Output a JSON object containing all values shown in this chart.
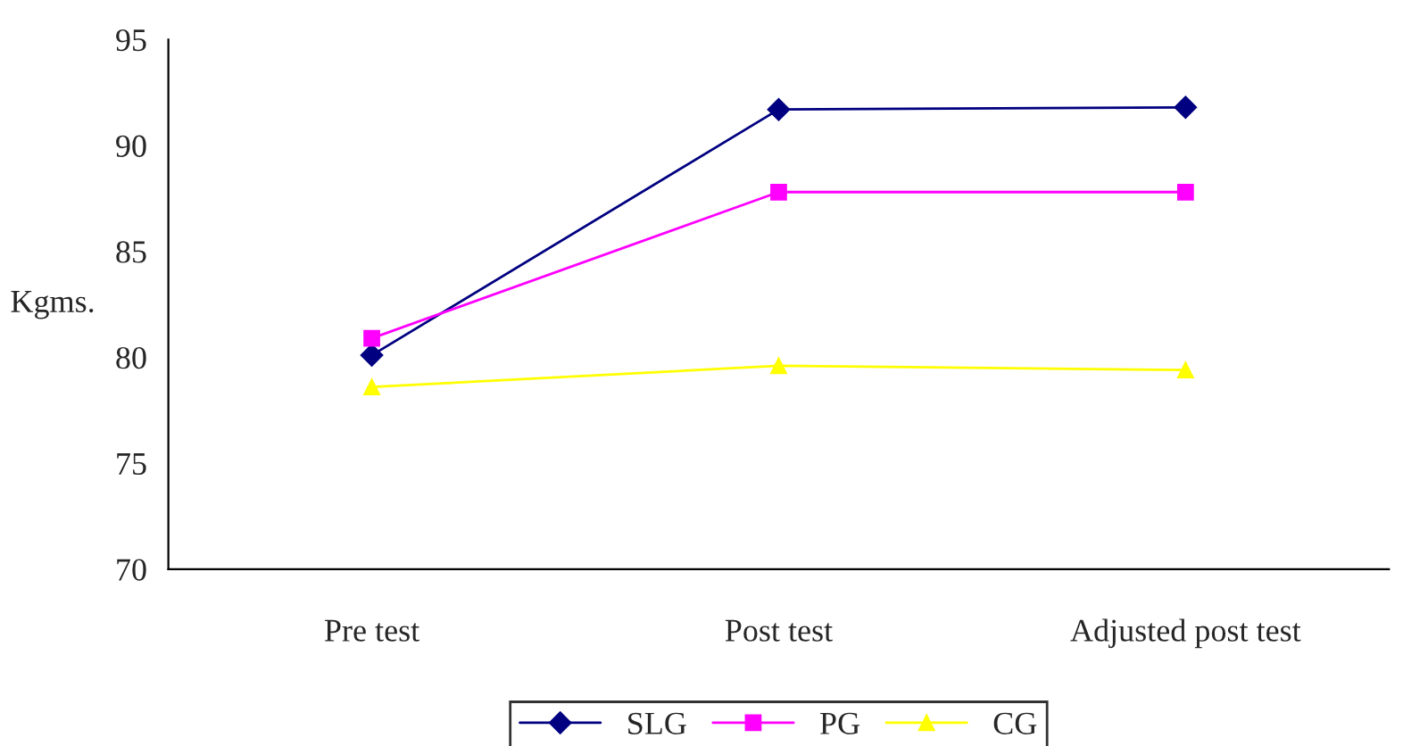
{
  "chart_data": {
    "type": "line",
    "ylabel": "Kgms.",
    "categories": [
      "Pre test",
      "Post test",
      "Adjusted post test"
    ],
    "series": [
      {
        "name": "SLG",
        "color": "#000080",
        "values": [
          80.1,
          91.7,
          91.8
        ],
        "marker": "diamond"
      },
      {
        "name": "PG",
        "color": "#ff00ff",
        "values": [
          80.9,
          87.8,
          87.8
        ],
        "marker": "square"
      },
      {
        "name": "CG",
        "color": "#ffff00",
        "values": [
          78.6,
          79.6,
          79.4
        ],
        "marker": "triangle"
      }
    ],
    "ylim": [
      70,
      95
    ],
    "yticks": [
      70,
      75,
      80,
      85,
      90,
      95
    ],
    "grid": false,
    "legend": "bottom",
    "line_style": "solid"
  }
}
